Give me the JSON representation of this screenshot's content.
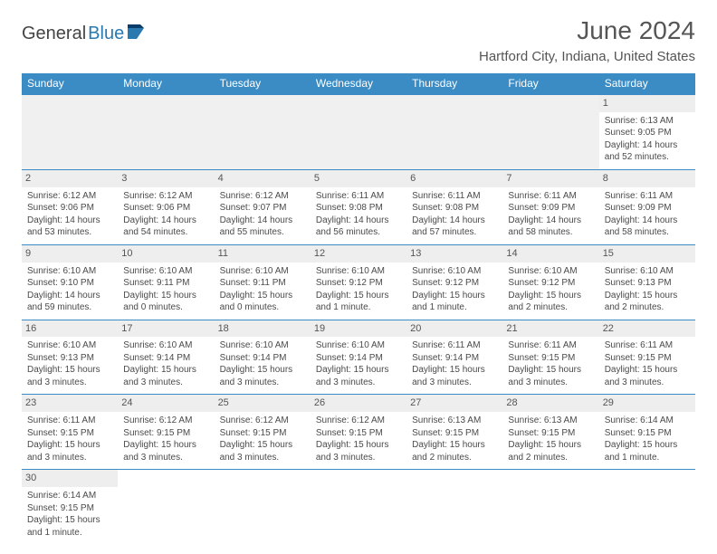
{
  "logo": {
    "part1": "General",
    "part2": "Blue"
  },
  "title": "June 2024",
  "location": "Hartford City, Indiana, United States",
  "colors": {
    "header_bg": "#3b8bc4",
    "header_text": "#ffffff",
    "row_border": "#3b8bc4",
    "daynum_bg": "#eeeeee",
    "text": "#4a4a4a",
    "logo_blue": "#2a7ab0"
  },
  "typography": {
    "title_fontsize": 28,
    "location_fontsize": 15,
    "header_fontsize": 12,
    "cell_fontsize": 10
  },
  "weekdays": [
    "Sunday",
    "Monday",
    "Tuesday",
    "Wednesday",
    "Thursday",
    "Friday",
    "Saturday"
  ],
  "weeks": [
    [
      null,
      null,
      null,
      null,
      null,
      null,
      {
        "day": "1",
        "sunrise": "Sunrise: 6:13 AM",
        "sunset": "Sunset: 9:05 PM",
        "daylight": "Daylight: 14 hours and 52 minutes."
      }
    ],
    [
      {
        "day": "2",
        "sunrise": "Sunrise: 6:12 AM",
        "sunset": "Sunset: 9:06 PM",
        "daylight": "Daylight: 14 hours and 53 minutes."
      },
      {
        "day": "3",
        "sunrise": "Sunrise: 6:12 AM",
        "sunset": "Sunset: 9:06 PM",
        "daylight": "Daylight: 14 hours and 54 minutes."
      },
      {
        "day": "4",
        "sunrise": "Sunrise: 6:12 AM",
        "sunset": "Sunset: 9:07 PM",
        "daylight": "Daylight: 14 hours and 55 minutes."
      },
      {
        "day": "5",
        "sunrise": "Sunrise: 6:11 AM",
        "sunset": "Sunset: 9:08 PM",
        "daylight": "Daylight: 14 hours and 56 minutes."
      },
      {
        "day": "6",
        "sunrise": "Sunrise: 6:11 AM",
        "sunset": "Sunset: 9:08 PM",
        "daylight": "Daylight: 14 hours and 57 minutes."
      },
      {
        "day": "7",
        "sunrise": "Sunrise: 6:11 AM",
        "sunset": "Sunset: 9:09 PM",
        "daylight": "Daylight: 14 hours and 58 minutes."
      },
      {
        "day": "8",
        "sunrise": "Sunrise: 6:11 AM",
        "sunset": "Sunset: 9:09 PM",
        "daylight": "Daylight: 14 hours and 58 minutes."
      }
    ],
    [
      {
        "day": "9",
        "sunrise": "Sunrise: 6:10 AM",
        "sunset": "Sunset: 9:10 PM",
        "daylight": "Daylight: 14 hours and 59 minutes."
      },
      {
        "day": "10",
        "sunrise": "Sunrise: 6:10 AM",
        "sunset": "Sunset: 9:11 PM",
        "daylight": "Daylight: 15 hours and 0 minutes."
      },
      {
        "day": "11",
        "sunrise": "Sunrise: 6:10 AM",
        "sunset": "Sunset: 9:11 PM",
        "daylight": "Daylight: 15 hours and 0 minutes."
      },
      {
        "day": "12",
        "sunrise": "Sunrise: 6:10 AM",
        "sunset": "Sunset: 9:12 PM",
        "daylight": "Daylight: 15 hours and 1 minute."
      },
      {
        "day": "13",
        "sunrise": "Sunrise: 6:10 AM",
        "sunset": "Sunset: 9:12 PM",
        "daylight": "Daylight: 15 hours and 1 minute."
      },
      {
        "day": "14",
        "sunrise": "Sunrise: 6:10 AM",
        "sunset": "Sunset: 9:12 PM",
        "daylight": "Daylight: 15 hours and 2 minutes."
      },
      {
        "day": "15",
        "sunrise": "Sunrise: 6:10 AM",
        "sunset": "Sunset: 9:13 PM",
        "daylight": "Daylight: 15 hours and 2 minutes."
      }
    ],
    [
      {
        "day": "16",
        "sunrise": "Sunrise: 6:10 AM",
        "sunset": "Sunset: 9:13 PM",
        "daylight": "Daylight: 15 hours and 3 minutes."
      },
      {
        "day": "17",
        "sunrise": "Sunrise: 6:10 AM",
        "sunset": "Sunset: 9:14 PM",
        "daylight": "Daylight: 15 hours and 3 minutes."
      },
      {
        "day": "18",
        "sunrise": "Sunrise: 6:10 AM",
        "sunset": "Sunset: 9:14 PM",
        "daylight": "Daylight: 15 hours and 3 minutes."
      },
      {
        "day": "19",
        "sunrise": "Sunrise: 6:10 AM",
        "sunset": "Sunset: 9:14 PM",
        "daylight": "Daylight: 15 hours and 3 minutes."
      },
      {
        "day": "20",
        "sunrise": "Sunrise: 6:11 AM",
        "sunset": "Sunset: 9:14 PM",
        "daylight": "Daylight: 15 hours and 3 minutes."
      },
      {
        "day": "21",
        "sunrise": "Sunrise: 6:11 AM",
        "sunset": "Sunset: 9:15 PM",
        "daylight": "Daylight: 15 hours and 3 minutes."
      },
      {
        "day": "22",
        "sunrise": "Sunrise: 6:11 AM",
        "sunset": "Sunset: 9:15 PM",
        "daylight": "Daylight: 15 hours and 3 minutes."
      }
    ],
    [
      {
        "day": "23",
        "sunrise": "Sunrise: 6:11 AM",
        "sunset": "Sunset: 9:15 PM",
        "daylight": "Daylight: 15 hours and 3 minutes."
      },
      {
        "day": "24",
        "sunrise": "Sunrise: 6:12 AM",
        "sunset": "Sunset: 9:15 PM",
        "daylight": "Daylight: 15 hours and 3 minutes."
      },
      {
        "day": "25",
        "sunrise": "Sunrise: 6:12 AM",
        "sunset": "Sunset: 9:15 PM",
        "daylight": "Daylight: 15 hours and 3 minutes."
      },
      {
        "day": "26",
        "sunrise": "Sunrise: 6:12 AM",
        "sunset": "Sunset: 9:15 PM",
        "daylight": "Daylight: 15 hours and 3 minutes."
      },
      {
        "day": "27",
        "sunrise": "Sunrise: 6:13 AM",
        "sunset": "Sunset: 9:15 PM",
        "daylight": "Daylight: 15 hours and 2 minutes."
      },
      {
        "day": "28",
        "sunrise": "Sunrise: 6:13 AM",
        "sunset": "Sunset: 9:15 PM",
        "daylight": "Daylight: 15 hours and 2 minutes."
      },
      {
        "day": "29",
        "sunrise": "Sunrise: 6:14 AM",
        "sunset": "Sunset: 9:15 PM",
        "daylight": "Daylight: 15 hours and 1 minute."
      }
    ],
    [
      {
        "day": "30",
        "sunrise": "Sunrise: 6:14 AM",
        "sunset": "Sunset: 9:15 PM",
        "daylight": "Daylight: 15 hours and 1 minute."
      },
      null,
      null,
      null,
      null,
      null,
      null
    ]
  ]
}
